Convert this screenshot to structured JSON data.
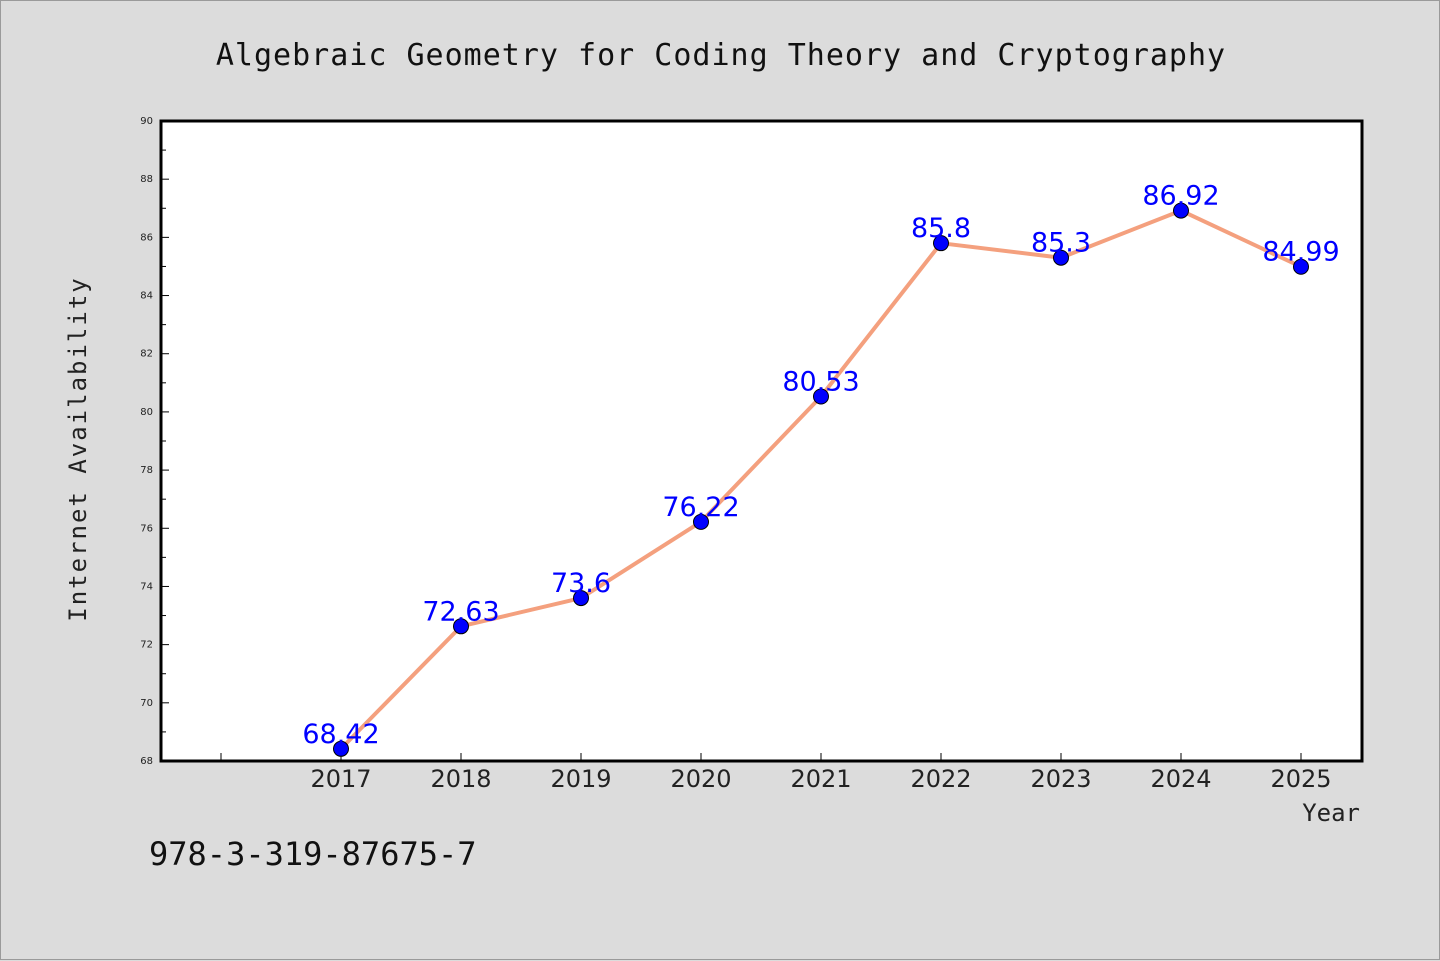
{
  "chart_data": {
    "type": "line",
    "title": "Algebraic Geometry for Coding Theory and Cryptography",
    "xlabel": "Year",
    "ylabel": "Internet Availability",
    "categories": [
      "2017",
      "2018",
      "2019",
      "2020",
      "2021",
      "2022",
      "2023",
      "2024",
      "2025"
    ],
    "series": [
      {
        "values": [
          68.42,
          72.63,
          73.6,
          76.22,
          80.53,
          85.8,
          85.3,
          86.92,
          84.99
        ],
        "data_labels": [
          "68.42",
          "72.63",
          "73.6",
          "76.22",
          "80.53",
          "85.8",
          "85.3",
          "86.92",
          "84.99"
        ]
      }
    ],
    "ylim": [
      68,
      90
    ],
    "yticks": [
      "68",
      "70",
      "72",
      "74",
      "76",
      "78",
      "80",
      "82",
      "84",
      "86",
      "88",
      "90"
    ],
    "grid": false,
    "line_color": "#f4a07e",
    "marker_color": "#0000ff",
    "label_color": "#0000ff"
  },
  "footer": {
    "code": "978-3-319-87675-7"
  }
}
